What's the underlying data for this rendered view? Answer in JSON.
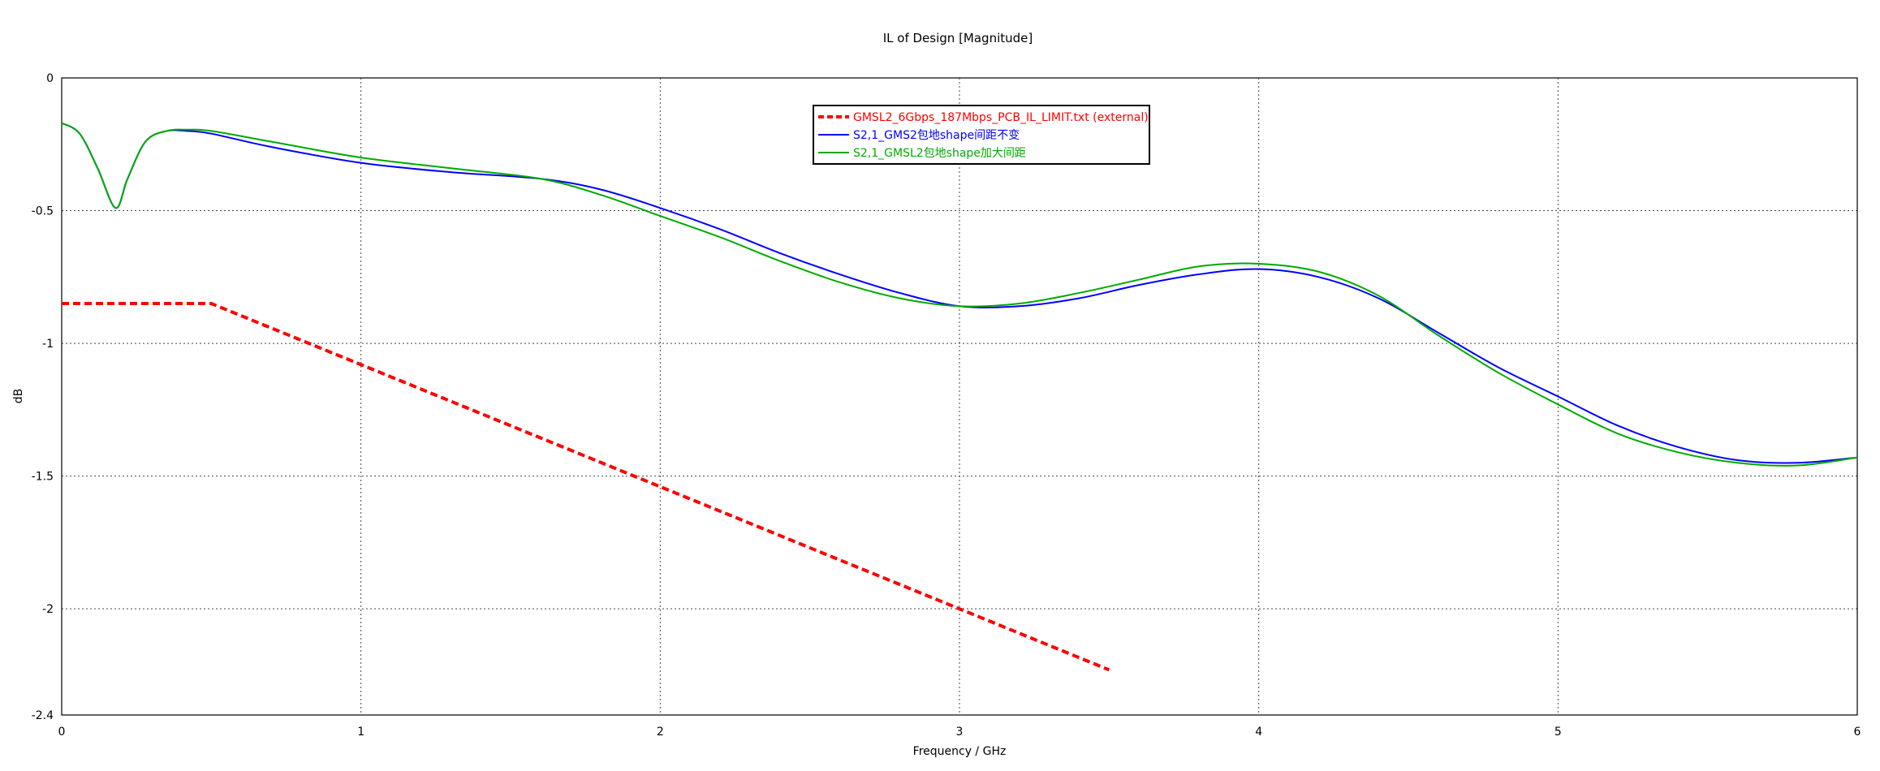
{
  "chart_data": {
    "type": "line",
    "title": "IL of Design [Magnitude]",
    "xlabel": "Frequency / GHz",
    "ylabel": "dB",
    "xlim": [
      0,
      6
    ],
    "ylim": [
      -2.4,
      0
    ],
    "xticks": [
      "0",
      "1",
      "2",
      "3",
      "4",
      "5",
      "6"
    ],
    "yticks": [
      "0",
      "-0.5",
      "-1",
      "-1.5",
      "-2",
      "-2.4"
    ],
    "grid": true,
    "legend_position": "top-center",
    "series": [
      {
        "name": "GMSL2_6Gbps_187Mbps_PCB_IL_LIMIT.txt (external)",
        "color": "#ff0000",
        "style": "dashed",
        "x": [
          0,
          0.5,
          1,
          1.5,
          2,
          2.5,
          3,
          3.5
        ],
        "y": [
          -0.85,
          -0.85,
          -1.08,
          -1.31,
          -1.54,
          -1.77,
          -2.0,
          -2.23
        ]
      },
      {
        "name": "S2,1_GMS2包地shape间距不变",
        "color": "#0000ff",
        "style": "solid",
        "x": [
          0,
          0.06,
          0.12,
          0.18,
          0.22,
          0.28,
          0.35,
          0.42,
          0.5,
          0.7,
          1.0,
          1.3,
          1.6,
          1.8,
          2.0,
          2.2,
          2.4,
          2.6,
          2.8,
          3.0,
          3.2,
          3.4,
          3.6,
          3.8,
          4.0,
          4.2,
          4.4,
          4.6,
          4.8,
          5.0,
          5.2,
          5.4,
          5.6,
          5.8,
          6.0
        ],
        "y": [
          -0.17,
          -0.21,
          -0.34,
          -0.49,
          -0.38,
          -0.24,
          -0.2,
          -0.2,
          -0.21,
          -0.26,
          -0.32,
          -0.355,
          -0.38,
          -0.42,
          -0.49,
          -0.57,
          -0.66,
          -0.74,
          -0.81,
          -0.86,
          -0.86,
          -0.83,
          -0.78,
          -0.74,
          -0.72,
          -0.75,
          -0.83,
          -0.96,
          -1.09,
          -1.2,
          -1.31,
          -1.39,
          -1.44,
          -1.45,
          -1.43
        ]
      },
      {
        "name": "S2,1_GMSL2包地shape加大间距",
        "color": "#00aa00",
        "style": "solid",
        "x": [
          0,
          0.06,
          0.12,
          0.18,
          0.22,
          0.28,
          0.35,
          0.42,
          0.5,
          0.7,
          1.0,
          1.3,
          1.6,
          1.8,
          2.0,
          2.2,
          2.4,
          2.6,
          2.8,
          3.0,
          3.2,
          3.4,
          3.6,
          3.8,
          4.0,
          4.2,
          4.4,
          4.6,
          4.8,
          5.0,
          5.2,
          5.4,
          5.6,
          5.8,
          6.0
        ],
        "y": [
          -0.17,
          -0.21,
          -0.34,
          -0.49,
          -0.38,
          -0.24,
          -0.2,
          -0.195,
          -0.2,
          -0.24,
          -0.3,
          -0.34,
          -0.38,
          -0.44,
          -0.52,
          -0.6,
          -0.69,
          -0.77,
          -0.83,
          -0.86,
          -0.85,
          -0.81,
          -0.76,
          -0.71,
          -0.7,
          -0.73,
          -0.82,
          -0.97,
          -1.11,
          -1.23,
          -1.34,
          -1.41,
          -1.45,
          -1.46,
          -1.43
        ]
      }
    ]
  }
}
